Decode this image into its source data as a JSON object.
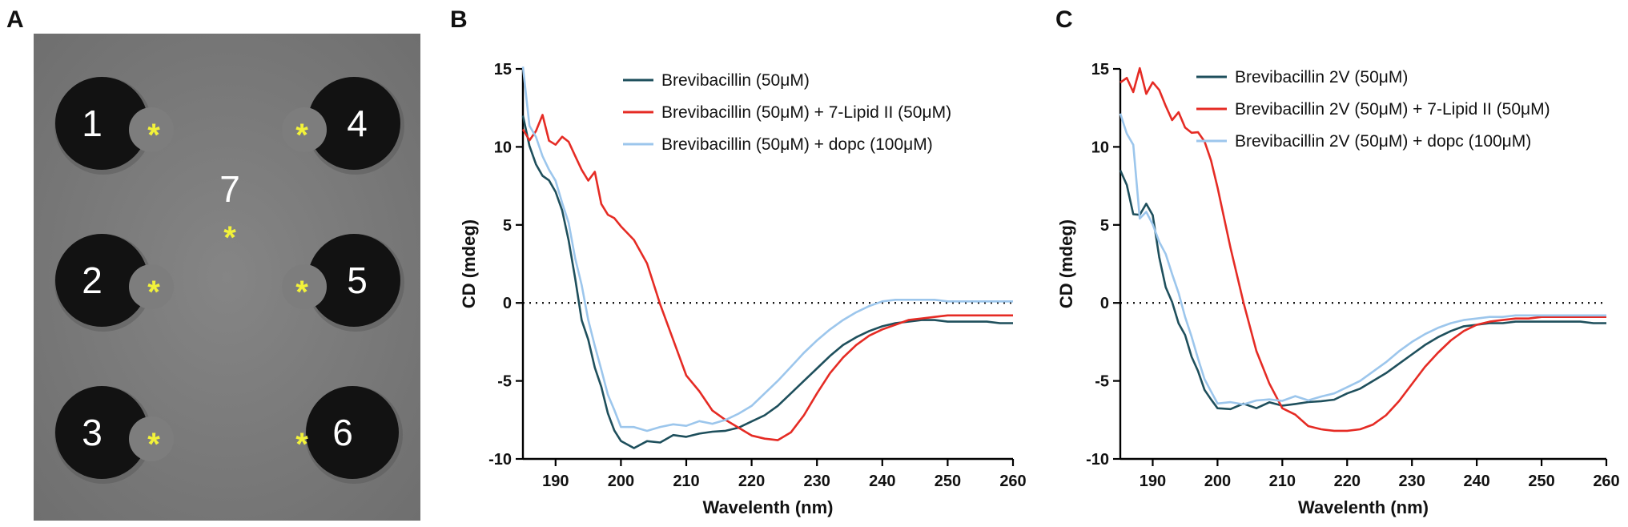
{
  "panel_labels": {
    "a": "A",
    "b": "B",
    "c": "C"
  },
  "plate": {
    "wells": [
      {
        "label": "1",
        "shape": "crescent-right",
        "marker": "*"
      },
      {
        "label": "2",
        "shape": "crescent-right",
        "marker": "*"
      },
      {
        "label": "3",
        "shape": "crescent-right",
        "marker": "*"
      },
      {
        "label": "4",
        "shape": "crescent-left",
        "marker": "*"
      },
      {
        "label": "5",
        "shape": "crescent-left",
        "marker": "*"
      },
      {
        "label": "6",
        "shape": "circle",
        "marker": "*"
      }
    ],
    "center": {
      "label": "7",
      "marker": "*"
    },
    "colors": {
      "background": "#7d7d7d",
      "well": "#121212",
      "label": "#ffffff",
      "marker": "#f2f23a"
    }
  },
  "chart_data": [
    {
      "type": "line",
      "id": "B",
      "xlabel": "Wavelenth (nm)",
      "ylabel": "CD (mdeg)",
      "xlim": [
        185,
        260
      ],
      "ylim": [
        -10,
        15
      ],
      "xticks": [
        190,
        200,
        210,
        220,
        230,
        240,
        250,
        260
      ],
      "yticks": [
        -10,
        -5,
        0,
        5,
        10,
        15
      ],
      "ytick_labels": [
        "-10",
        "-5",
        "0",
        "5",
        "10",
        "15"
      ],
      "reference_line": 0,
      "legend": "top-right",
      "series": [
        {
          "name": "Brevibacillin (50μM)",
          "color": "#1e4f5c",
          "x": [
            185,
            186,
            187,
            188,
            189,
            190,
            191,
            192,
            193,
            194,
            195,
            196,
            197,
            198,
            199,
            200,
            202,
            204,
            206,
            208,
            210,
            212,
            214,
            216,
            218,
            220,
            222,
            224,
            226,
            228,
            230,
            232,
            234,
            236,
            238,
            240,
            242,
            244,
            246,
            248,
            250,
            252,
            254,
            256,
            258,
            260
          ],
          "y": [
            12,
            10,
            9,
            8,
            8,
            7,
            6,
            4,
            1.5,
            -1,
            -2.5,
            -4,
            -5.5,
            -7,
            -8.2,
            -8.9,
            -9.2,
            -9,
            -8.8,
            -8.6,
            -8.5,
            -8.4,
            -8.3,
            -8.2,
            -8,
            -7.6,
            -7.2,
            -6.6,
            -5.8,
            -5,
            -4.2,
            -3.4,
            -2.7,
            -2.2,
            -1.8,
            -1.5,
            -1.3,
            -1.2,
            -1.1,
            -1.1,
            -1.2,
            -1.2,
            -1.2,
            -1.2,
            -1.3,
            -1.3
          ]
        },
        {
          "name": "Brevibacillin (50μM) + 7-Lipid II (50μM)",
          "color": "#e52b24",
          "x": [
            185,
            186,
            187,
            188,
            189,
            190,
            191,
            192,
            193,
            194,
            195,
            196,
            197,
            198,
            199,
            200,
            202,
            204,
            206,
            208,
            210,
            212,
            214,
            216,
            218,
            220,
            222,
            224,
            226,
            228,
            230,
            232,
            234,
            236,
            238,
            240,
            242,
            244,
            246,
            248,
            250,
            252,
            254,
            256,
            258,
            260
          ],
          "y": [
            11,
            10.5,
            11,
            12,
            10.5,
            10,
            10.8,
            10.2,
            9.5,
            8.5,
            7.8,
            8.5,
            6.2,
            5.8,
            5.3,
            5,
            4,
            2.5,
            0,
            -2.5,
            -4.5,
            -5.8,
            -6.8,
            -7.5,
            -8,
            -8.5,
            -8.7,
            -8.8,
            -8.3,
            -7.2,
            -5.8,
            -4.5,
            -3.5,
            -2.7,
            -2.1,
            -1.7,
            -1.4,
            -1.1,
            -1,
            -0.9,
            -0.8,
            -0.8,
            -0.8,
            -0.8,
            -0.8,
            -0.8
          ]
        },
        {
          "name": "Brevibacillin (50μM) + dopc (100μM)",
          "color": "#9cc6ec",
          "x": [
            185,
            186,
            187,
            188,
            189,
            190,
            191,
            192,
            193,
            194,
            195,
            196,
            197,
            198,
            199,
            200,
            202,
            204,
            206,
            208,
            210,
            212,
            214,
            216,
            218,
            220,
            222,
            224,
            226,
            228,
            230,
            232,
            234,
            236,
            238,
            240,
            242,
            244,
            246,
            248,
            250,
            252,
            254,
            256,
            258,
            260
          ],
          "y": [
            15,
            11.5,
            10.5,
            9.5,
            8.5,
            7.8,
            6.5,
            5,
            3,
            1,
            -1,
            -2.8,
            -4.3,
            -5.8,
            -7,
            -7.8,
            -8.1,
            -8.1,
            -8,
            -7.8,
            -7.8,
            -7.7,
            -7.6,
            -7.5,
            -7.1,
            -6.6,
            -5.8,
            -5,
            -4.1,
            -3.2,
            -2.4,
            -1.7,
            -1.1,
            -0.6,
            -0.2,
            0.1,
            0.2,
            0.2,
            0.2,
            0.2,
            0.1,
            0.1,
            0.1,
            0.1,
            0.1,
            0.1
          ]
        }
      ]
    },
    {
      "type": "line",
      "id": "C",
      "xlabel": "Wavelenth (nm)",
      "ylabel": "CD (mdeg)",
      "xlim": [
        185,
        260
      ],
      "ylim": [
        -10,
        15
      ],
      "xticks": [
        190,
        200,
        210,
        220,
        230,
        240,
        250,
        260
      ],
      "yticks": [
        -10,
        -5,
        0,
        5,
        10,
        15
      ],
      "ytick_labels": [
        "-10",
        "-5",
        "0",
        "5",
        "10",
        "15"
      ],
      "reference_line": 0,
      "legend": "top-right",
      "series": [
        {
          "name": "Brevibacillin 2V (50μM)",
          "color": "#1e4f5c",
          "x": [
            185,
            186,
            187,
            188,
            189,
            190,
            191,
            192,
            193,
            194,
            195,
            196,
            197,
            198,
            199,
            200,
            202,
            204,
            206,
            208,
            210,
            212,
            214,
            216,
            218,
            220,
            222,
            224,
            226,
            228,
            230,
            232,
            234,
            236,
            238,
            240,
            242,
            244,
            246,
            248,
            250,
            252,
            254,
            256,
            258,
            260
          ],
          "y": [
            8.5,
            7.5,
            5.8,
            5.5,
            6.5,
            5.5,
            3,
            1,
            0,
            -1.2,
            -2.2,
            -3.3,
            -4.5,
            -5.5,
            -6.2,
            -6.8,
            -6.7,
            -6.6,
            -6.6,
            -6.5,
            -6.5,
            -6.5,
            -6.4,
            -6.3,
            -6.2,
            -5.8,
            -5.5,
            -5,
            -4.5,
            -3.9,
            -3.3,
            -2.7,
            -2.2,
            -1.8,
            -1.5,
            -1.4,
            -1.3,
            -1.3,
            -1.2,
            -1.2,
            -1.2,
            -1.2,
            -1.2,
            -1.2,
            -1.3,
            -1.3
          ]
        },
        {
          "name": "Brevibacillin 2V (50μM) + 7-Lipid II (50μM)",
          "color": "#e52b24",
          "x": [
            185,
            186,
            187,
            188,
            189,
            190,
            191,
            192,
            193,
            194,
            195,
            196,
            197,
            198,
            199,
            200,
            202,
            204,
            206,
            208,
            210,
            212,
            214,
            216,
            218,
            220,
            222,
            224,
            226,
            228,
            230,
            232,
            234,
            236,
            238,
            240,
            242,
            244,
            246,
            248,
            250,
            252,
            254,
            256,
            258,
            260
          ],
          "y": [
            14,
            14.5,
            13.5,
            15,
            13.5,
            14,
            13.8,
            12.5,
            11.8,
            12.2,
            11.2,
            11,
            10.8,
            10.5,
            9,
            7.5,
            3.5,
            0,
            -3,
            -5.3,
            -6.6,
            -7.3,
            -7.8,
            -8.1,
            -8.2,
            -8.2,
            -8.1,
            -7.8,
            -7.2,
            -6.3,
            -5.2,
            -4.1,
            -3.2,
            -2.4,
            -1.8,
            -1.4,
            -1.2,
            -1.1,
            -1,
            -1,
            -0.9,
            -0.9,
            -0.9,
            -0.9,
            -0.9,
            -0.9
          ]
        },
        {
          "name": "Brevibacillin 2V (50μM) + dopc (100μM)",
          "color": "#9cc6ec",
          "x": [
            185,
            186,
            187,
            188,
            189,
            190,
            191,
            192,
            193,
            194,
            195,
            196,
            197,
            198,
            199,
            200,
            202,
            204,
            206,
            208,
            210,
            212,
            214,
            216,
            218,
            220,
            222,
            224,
            226,
            228,
            230,
            232,
            234,
            236,
            238,
            240,
            242,
            244,
            246,
            248,
            250,
            252,
            254,
            256,
            258,
            260
          ],
          "y": [
            12,
            11,
            10,
            5.5,
            5.8,
            5,
            4,
            3,
            2,
            0.5,
            -0.8,
            -2.2,
            -3.6,
            -4.8,
            -5.8,
            -6.3,
            -6.5,
            -6.4,
            -6.3,
            -6.2,
            -6.2,
            -6.1,
            -6.1,
            -6,
            -5.8,
            -5.4,
            -5,
            -4.4,
            -3.8,
            -3.1,
            -2.5,
            -2,
            -1.6,
            -1.3,
            -1.1,
            -1,
            -0.9,
            -0.9,
            -0.8,
            -0.8,
            -0.8,
            -0.8,
            -0.8,
            -0.8,
            -0.8,
            -0.8
          ]
        }
      ]
    }
  ]
}
